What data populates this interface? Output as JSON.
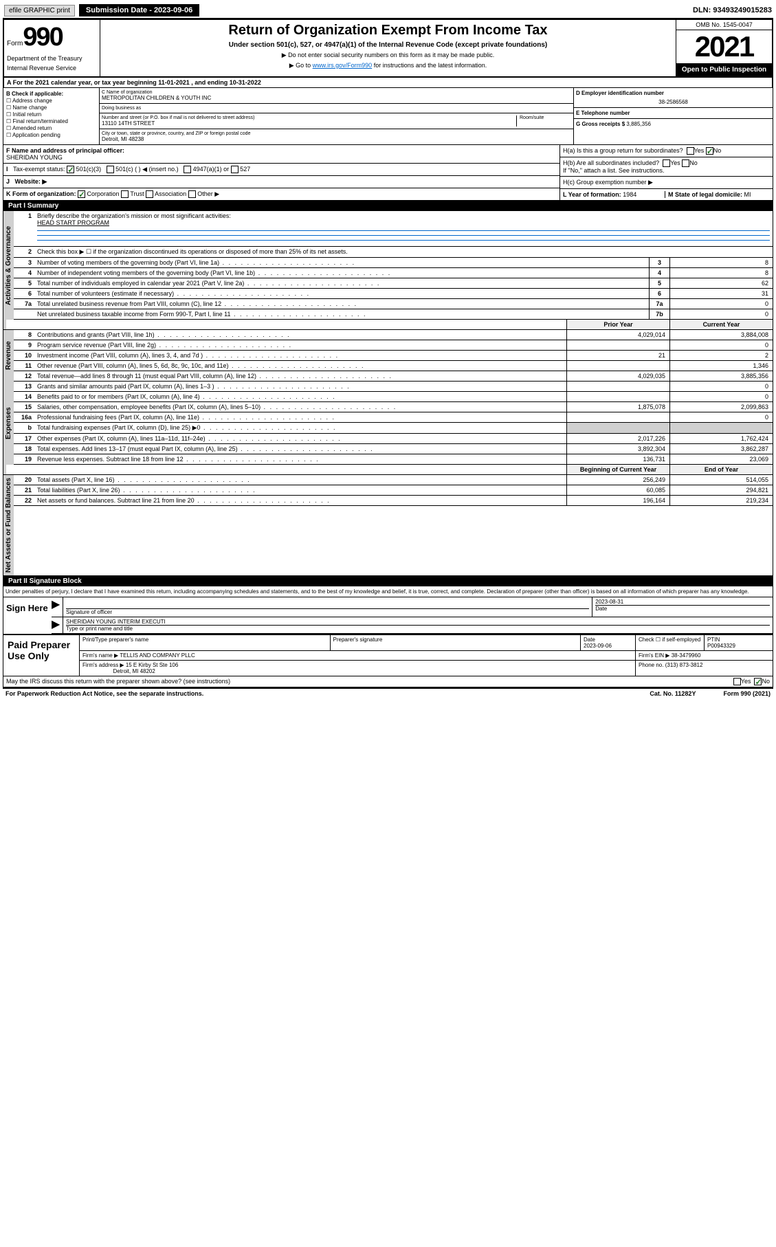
{
  "header_bar": {
    "efile": "efile GRAPHIC print",
    "submission": "Submission Date - 2023-09-06",
    "dln": "DLN: 93493249015283"
  },
  "form_top": {
    "form_word": "Form",
    "form_num": "990",
    "dept": "Department of the Treasury",
    "irs": "Internal Revenue Service",
    "title": "Return of Organization Exempt From Income Tax",
    "subtitle": "Under section 501(c), 527, or 4947(a)(1) of the Internal Revenue Code (except private foundations)",
    "instr1": "▶ Do not enter social security numbers on this form as it may be made public.",
    "instr2_pre": "▶ Go to ",
    "instr2_link": "www.irs.gov/Form990",
    "instr2_post": " for instructions and the latest information.",
    "omb": "OMB No. 1545-0047",
    "year": "2021",
    "open": "Open to Public Inspection"
  },
  "section_a": "A For the 2021 calendar year, or tax year beginning 11-01-2021  , and ending 10-31-2022",
  "check_b": {
    "label": "B Check if applicable:",
    "items": [
      "Address change",
      "Name change",
      "Initial return",
      "Final return/terminated",
      "Amended return",
      "Application pending"
    ]
  },
  "name_block": {
    "c_label": "C Name of organization",
    "c_name": "METROPOLITAN CHILDREN & YOUTH INC",
    "dba_label": "Doing business as",
    "dba": "",
    "addr_label": "Number and street (or P.O. box if mail is not delivered to street address)",
    "addr": "13110 14TH STREET",
    "room_label": "Room/suite",
    "city_label": "City or town, state or province, country, and ZIP or foreign postal code",
    "city": "Detroit, MI  48238"
  },
  "right_block": {
    "d_label": "D Employer identification number",
    "d_val": "38-2586568",
    "e_label": "E Telephone number",
    "e_val": "",
    "g_label": "G Gross receipts $",
    "g_val": "3,885,356"
  },
  "f_block": {
    "f_label": "F Name and address of principal officer:",
    "f_val": "SHERIDAN YOUNG"
  },
  "h_block": {
    "ha_label": "H(a)  Is this a group return for subordinates?",
    "hb_label": "H(b)  Are all subordinates included?",
    "hb_note": "If \"No,\" attach a list. See instructions.",
    "hc_label": "H(c)  Group exemption number ▶"
  },
  "i_block": {
    "label": "Tax-exempt status:",
    "opt1": "501(c)(3)",
    "opt2": "501(c) (  ) ◀ (insert no.)",
    "opt3": "4947(a)(1) or",
    "opt4": "527"
  },
  "j_block": {
    "label": "Website: ▶",
    "val": ""
  },
  "k_block": {
    "label": "K Form of organization:",
    "opts": [
      "Corporation",
      "Trust",
      "Association",
      "Other ▶"
    ]
  },
  "l_block": {
    "label": "L Year of formation:",
    "val": "1984"
  },
  "m_block": {
    "label": "M State of legal domicile:",
    "val": "MI"
  },
  "part1": {
    "header": "Part I    Summary",
    "q1_label": "Briefly describe the organization's mission or most significant activities:",
    "q1_val": "HEAD START PROGRAM",
    "q2": "Check this box ▶ ☐  if the organization discontinued its operations or disposed of more than 25% of its net assets.",
    "rows_gov": [
      {
        "n": "3",
        "t": "Number of voting members of the governing body (Part VI, line 1a)",
        "rn": "3",
        "v": "8"
      },
      {
        "n": "4",
        "t": "Number of independent voting members of the governing body (Part VI, line 1b)",
        "rn": "4",
        "v": "8"
      },
      {
        "n": "5",
        "t": "Total number of individuals employed in calendar year 2021 (Part V, line 2a)",
        "rn": "5",
        "v": "62"
      },
      {
        "n": "6",
        "t": "Total number of volunteers (estimate if necessary)",
        "rn": "6",
        "v": "31"
      },
      {
        "n": "7a",
        "t": "Total unrelated business revenue from Part VIII, column (C), line 12",
        "rn": "7a",
        "v": "0"
      },
      {
        "n": "",
        "t": "Net unrelated business taxable income from Form 990-T, Part I, line 11",
        "rn": "7b",
        "v": "0"
      }
    ],
    "col_headers": {
      "prior": "Prior Year",
      "current": "Current Year",
      "boy": "Beginning of Current Year",
      "eoy": "End of Year"
    },
    "rows_rev": [
      {
        "n": "8",
        "t": "Contributions and grants (Part VIII, line 1h)",
        "p": "4,029,014",
        "c": "3,884,008"
      },
      {
        "n": "9",
        "t": "Program service revenue (Part VIII, line 2g)",
        "p": "",
        "c": "0"
      },
      {
        "n": "10",
        "t": "Investment income (Part VIII, column (A), lines 3, 4, and 7d )",
        "p": "21",
        "c": "2"
      },
      {
        "n": "11",
        "t": "Other revenue (Part VIII, column (A), lines 5, 6d, 8c, 9c, 10c, and 11e)",
        "p": "",
        "c": "1,346"
      },
      {
        "n": "12",
        "t": "Total revenue—add lines 8 through 11 (must equal Part VIII, column (A), line 12)",
        "p": "4,029,035",
        "c": "3,885,356"
      }
    ],
    "rows_exp": [
      {
        "n": "13",
        "t": "Grants and similar amounts paid (Part IX, column (A), lines 1–3 )",
        "p": "",
        "c": "0"
      },
      {
        "n": "14",
        "t": "Benefits paid to or for members (Part IX, column (A), line 4)",
        "p": "",
        "c": "0"
      },
      {
        "n": "15",
        "t": "Salaries, other compensation, employee benefits (Part IX, column (A), lines 5–10)",
        "p": "1,875,078",
        "c": "2,099,863"
      },
      {
        "n": "16a",
        "t": "Professional fundraising fees (Part IX, column (A), line 11e)",
        "p": "",
        "c": "0"
      },
      {
        "n": "b",
        "t": "Total fundraising expenses (Part IX, column (D), line 25) ▶0",
        "p": "shaded",
        "c": "shaded"
      },
      {
        "n": "17",
        "t": "Other expenses (Part IX, column (A), lines 11a–11d, 11f–24e)",
        "p": "2,017,226",
        "c": "1,762,424"
      },
      {
        "n": "18",
        "t": "Total expenses. Add lines 13–17 (must equal Part IX, column (A), line 25)",
        "p": "3,892,304",
        "c": "3,862,287"
      },
      {
        "n": "19",
        "t": "Revenue less expenses. Subtract line 18 from line 12",
        "p": "136,731",
        "c": "23,069"
      }
    ],
    "rows_net": [
      {
        "n": "20",
        "t": "Total assets (Part X, line 16)",
        "p": "256,249",
        "c": "514,055"
      },
      {
        "n": "21",
        "t": "Total liabilities (Part X, line 26)",
        "p": "60,085",
        "c": "294,821"
      },
      {
        "n": "22",
        "t": "Net assets or fund balances. Subtract line 21 from line 20",
        "p": "196,164",
        "c": "219,234"
      }
    ],
    "side_labels": {
      "gov": "Activities & Governance",
      "rev": "Revenue",
      "exp": "Expenses",
      "net": "Net Assets or Fund Balances"
    }
  },
  "part2": {
    "header": "Part II    Signature Block",
    "decl": "Under penalties of perjury, I declare that I have examined this return, including accompanying schedules and statements, and to the best of my knowledge and belief, it is true, correct, and complete. Declaration of preparer (other than officer) is based on all information of which preparer has any knowledge.",
    "sign_here": "Sign Here",
    "sig_officer": "Signature of officer",
    "date_label": "Date",
    "date_val": "2023-08-31",
    "name_title": "SHERIDAN YOUNG INTERIM EXECUTI",
    "name_title_label": "Type or print name and title",
    "paid": "Paid Preparer Use Only",
    "prep_name_label": "Print/Type preparer's name",
    "prep_sig_label": "Preparer's signature",
    "prep_date_label": "Date",
    "prep_date": "2023-09-06",
    "self_emp": "Check ☐ if self-employed",
    "ptin_label": "PTIN",
    "ptin": "P00943329",
    "firm_name_label": "Firm's name    ▶",
    "firm_name": "TELLIS AND COMPANY PLLC",
    "firm_ein_label": "Firm's EIN ▶",
    "firm_ein": "38-3479960",
    "firm_addr_label": "Firm's address ▶",
    "firm_addr1": "15 E Kirby St Ste 106",
    "firm_addr2": "Detroit, MI  48202",
    "phone_label": "Phone no.",
    "phone": "(313) 873-3812",
    "discuss": "May the IRS discuss this return with the preparer shown above? (see instructions)"
  },
  "footer": {
    "pra": "For Paperwork Reduction Act Notice, see the separate instructions.",
    "cat": "Cat. No. 11282Y",
    "form": "Form 990 (2021)"
  }
}
